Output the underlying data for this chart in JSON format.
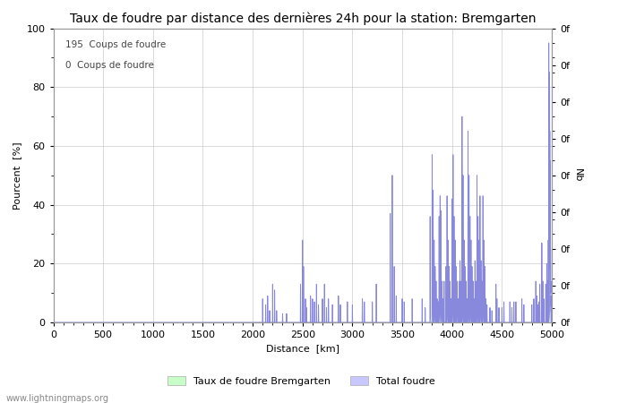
{
  "title": "Taux de foudre par distance des dernières 24h pour la station: Bremgarten",
  "xlabel": "Distance  [km]",
  "ylabel_left": "Pourcent  [%]",
  "ylabel_right": "Nb",
  "annotation_line1": "195  Coups de foudre",
  "annotation_line2": "0  Coups de foudre",
  "legend_label1": "Taux de foudre Bremgarten",
  "legend_label2": "Total foudre",
  "watermark": "www.lightningmaps.org",
  "xlim": [
    0,
    5000
  ],
  "ylim": [
    0,
    100
  ],
  "xticks": [
    0,
    500,
    1000,
    1500,
    2000,
    2500,
    3000,
    3500,
    4000,
    4500,
    5000
  ],
  "yticks_left": [
    0,
    20,
    40,
    60,
    80,
    100
  ],
  "fill_color_total": "#c8c8ff",
  "fill_color_station": "#c8ffc8",
  "line_color": "#8888dd",
  "background_color": "#ffffff",
  "grid_color": "#cccccc",
  "title_fontsize": 10,
  "label_fontsize": 8,
  "tick_fontsize": 8,
  "peaks_total": [
    [
      2100,
      8
    ],
    [
      2130,
      6
    ],
    [
      2150,
      9
    ],
    [
      2170,
      4
    ],
    [
      2200,
      13
    ],
    [
      2220,
      11
    ],
    [
      2240,
      4
    ],
    [
      2300,
      3
    ],
    [
      2340,
      3
    ],
    [
      2480,
      13
    ],
    [
      2500,
      28
    ],
    [
      2510,
      19
    ],
    [
      2530,
      8
    ],
    [
      2540,
      5
    ],
    [
      2580,
      9
    ],
    [
      2600,
      8
    ],
    [
      2620,
      7
    ],
    [
      2640,
      13
    ],
    [
      2660,
      6
    ],
    [
      2700,
      8
    ],
    [
      2720,
      13
    ],
    [
      2740,
      5
    ],
    [
      2760,
      8
    ],
    [
      2800,
      6
    ],
    [
      2860,
      9
    ],
    [
      2880,
      6
    ],
    [
      2950,
      7
    ],
    [
      3000,
      6
    ],
    [
      3100,
      8
    ],
    [
      3120,
      7
    ],
    [
      3200,
      7
    ],
    [
      3240,
      13
    ],
    [
      3380,
      37
    ],
    [
      3400,
      50
    ],
    [
      3420,
      19
    ],
    [
      3440,
      9
    ],
    [
      3500,
      8
    ],
    [
      3520,
      7
    ],
    [
      3600,
      8
    ],
    [
      3700,
      8
    ],
    [
      3730,
      5
    ],
    [
      3780,
      36
    ],
    [
      3800,
      57
    ],
    [
      3810,
      45
    ],
    [
      3820,
      28
    ],
    [
      3830,
      19
    ],
    [
      3840,
      14
    ],
    [
      3850,
      8
    ],
    [
      3860,
      7
    ],
    [
      3870,
      36
    ],
    [
      3880,
      43
    ],
    [
      3890,
      38
    ],
    [
      3900,
      14
    ],
    [
      3910,
      8
    ],
    [
      3920,
      14
    ],
    [
      3940,
      19
    ],
    [
      3950,
      43
    ],
    [
      3960,
      28
    ],
    [
      3970,
      19
    ],
    [
      3980,
      14
    ],
    [
      3990,
      8
    ],
    [
      4000,
      42
    ],
    [
      4010,
      57
    ],
    [
      4020,
      36
    ],
    [
      4030,
      28
    ],
    [
      4040,
      19
    ],
    [
      4050,
      14
    ],
    [
      4060,
      8
    ],
    [
      4070,
      14
    ],
    [
      4080,
      21
    ],
    [
      4090,
      14
    ],
    [
      4100,
      70
    ],
    [
      4110,
      50
    ],
    [
      4120,
      28
    ],
    [
      4130,
      19
    ],
    [
      4140,
      14
    ],
    [
      4150,
      8
    ],
    [
      4160,
      65
    ],
    [
      4170,
      50
    ],
    [
      4180,
      36
    ],
    [
      4190,
      28
    ],
    [
      4200,
      19
    ],
    [
      4210,
      14
    ],
    [
      4220,
      8
    ],
    [
      4230,
      21
    ],
    [
      4240,
      14
    ],
    [
      4250,
      50
    ],
    [
      4260,
      36
    ],
    [
      4270,
      28
    ],
    [
      4280,
      43
    ],
    [
      4290,
      21
    ],
    [
      4300,
      14
    ],
    [
      4310,
      43
    ],
    [
      4320,
      28
    ],
    [
      4330,
      19
    ],
    [
      4340,
      8
    ],
    [
      4350,
      6
    ],
    [
      4380,
      5
    ],
    [
      4400,
      4
    ],
    [
      4440,
      13
    ],
    [
      4450,
      8
    ],
    [
      4470,
      5
    ],
    [
      4500,
      5
    ],
    [
      4520,
      7
    ],
    [
      4580,
      7
    ],
    [
      4600,
      5
    ],
    [
      4620,
      7
    ],
    [
      4640,
      7
    ],
    [
      4700,
      8
    ],
    [
      4720,
      6
    ],
    [
      4800,
      6
    ],
    [
      4820,
      8
    ],
    [
      4840,
      14
    ],
    [
      4850,
      9
    ],
    [
      4860,
      6
    ],
    [
      4870,
      7
    ],
    [
      4880,
      13
    ],
    [
      4900,
      27
    ],
    [
      4910,
      14
    ],
    [
      4920,
      8
    ],
    [
      4940,
      13
    ],
    [
      4950,
      20
    ],
    [
      4960,
      14
    ],
    [
      4965,
      28
    ],
    [
      4970,
      95
    ],
    [
      4975,
      85
    ],
    [
      4978,
      80
    ],
    [
      4980,
      65
    ],
    [
      4982,
      55
    ],
    [
      4984,
      45
    ],
    [
      4986,
      35
    ],
    [
      4988,
      25
    ],
    [
      4990,
      14
    ],
    [
      4992,
      9
    ],
    [
      4994,
      7
    ],
    [
      4996,
      5
    ],
    [
      5000,
      3
    ]
  ],
  "peaks_station": [
    [
      3780,
      2
    ],
    [
      3800,
      3
    ],
    [
      3820,
      2
    ],
    [
      3870,
      2
    ],
    [
      3880,
      3
    ],
    [
      3890,
      2
    ],
    [
      3950,
      2
    ],
    [
      4000,
      3
    ],
    [
      4050,
      2
    ],
    [
      4100,
      2
    ],
    [
      4160,
      2
    ],
    [
      4180,
      2
    ],
    [
      4250,
      2
    ],
    [
      4280,
      2
    ],
    [
      4310,
      2
    ],
    [
      4970,
      3
    ],
    [
      4975,
      4
    ],
    [
      4978,
      3
    ]
  ]
}
